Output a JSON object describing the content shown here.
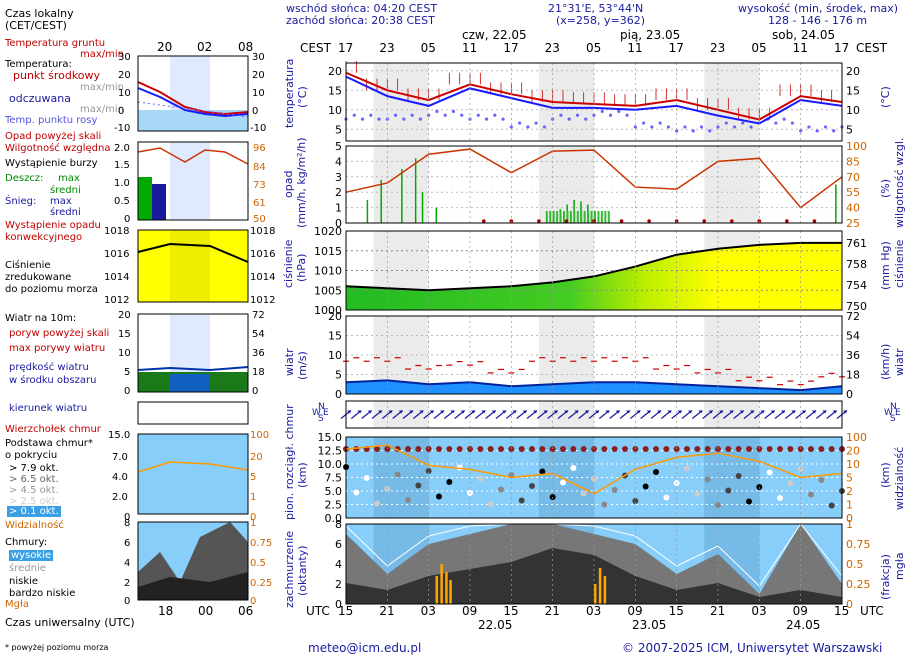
{
  "header": {
    "sunrise": "wschód słońca: 04:20 CEST",
    "sunset": "zachód słońca: 20:38 CEST",
    "coords": "21°31'E, 53°44'N",
    "grid": "(x=258, y=362)",
    "height_label": "wysokość (min, środek, max)",
    "height_values": "128 - 146 - 176 m"
  },
  "legend": {
    "local_time": "Czas lokalny",
    "local_time_zone": "(CET/CEST)",
    "soil_temp": "Temperatura gruntu",
    "soil_temp_sub": "max/min",
    "temperature": "Temperatura:",
    "midpoint": "punkt środkowy",
    "max_min": "max/min",
    "feels_like": "odczuwana",
    "feels_max_min": "max/min",
    "dew_point": "Temp. punktu rosy",
    "precip_above": "Opad powyżej skali",
    "humidity": "Wilgotność względna",
    "storm": "Wystąpienie burzy",
    "rain": "Deszcz:",
    "rain_max": "max",
    "rain_mean": "średni",
    "snow": "Śnieg:",
    "snow_max": "max",
    "snow_mean": "średni",
    "convective": "Wystąpienie opadu",
    "convective2": "konwekcyjnego",
    "pressure": "Ciśnienie",
    "pressure2": "zredukowane",
    "pressure3": "do poziomu morza",
    "wind": "Wiatr na 10m:",
    "gust_above": "poryw powyżej skali",
    "max_gust": "max porywy wiatru",
    "wind_speed": "prędkość wiatru",
    "wind_speed2": "w środku obszaru",
    "wind_dir": "kierunek wiatru",
    "cloud_top": "Wierzchołek chmur",
    "cloud_base": "Podstawa chmur*",
    "cloud_base2": "o pokryciu",
    "okt79": "> 7.9 okt.",
    "okt65": "> 6.5 okt.",
    "okt45": "> 4.5 okt.",
    "okt25": "> 2.5 okt.",
    "okt01": "> 0.1 okt.",
    "visibility": "Widzialność",
    "clouds": "Chmury:",
    "high": "wysokie",
    "mid": "średnie",
    "low": "niskie",
    "very_low": "bardzo niskie",
    "fog": "Mgła",
    "utc_time": "Czas uniwersalny (UTC)",
    "footnote": "* powyżej poziomu morza"
  },
  "axes": {
    "cest": "CEST",
    "utc": "UTC",
    "top_hours": [
      "17",
      "23",
      "05",
      "11",
      "17",
      "23",
      "05",
      "11",
      "17",
      "23",
      "05",
      "11",
      "17"
    ],
    "bottom_hours": [
      "15",
      "21",
      "03",
      "09",
      "15",
      "21",
      "03",
      "09",
      "15",
      "21",
      "03",
      "09",
      "15"
    ],
    "days_top": [
      "czw, 22.05",
      "pią, 23.05",
      "sob, 24.05"
    ],
    "days_bottom": [
      "22.05",
      "23.05",
      "24.05"
    ],
    "legend_top_hours": [
      "20",
      "02",
      "08"
    ],
    "legend_bottom_hours": [
      "18",
      "00",
      "06"
    ],
    "temp_label": "temperatura",
    "temp_unit": "(°C)",
    "precip_label": "opad",
    "precip_unit": "(mm/h, kg/m²/h)",
    "humidity_label": "wilgotność wzgl.",
    "humidity_unit": "(%)",
    "pressure_label": "ciśnienie",
    "pressure_unit": "(hPa)",
    "pressure_unit2": "(mm Hg)",
    "wind_label": "wiatr",
    "wind_unit": "(m/s)",
    "wind_unit2": "(km/h)",
    "cloud_label": "pion. rozciągł. chmur",
    "cloud_unit": "(km)",
    "vis_label": "widzialność",
    "vis_unit": "(km)",
    "cover_label": "zachmurzenie",
    "cover_unit": "(oktanty)",
    "fog_label": "mgła",
    "fog_unit": "(frakcja)",
    "compass": "N W E S"
  },
  "ticks": {
    "temp_left": [
      "20",
      "15",
      "10",
      "5"
    ],
    "temp_right": [
      "20",
      "15",
      "10",
      "5"
    ],
    "legend_temp_left": [
      "30",
      "20",
      "10",
      "0",
      "-10"
    ],
    "legend_temp_right": [
      "30",
      "20",
      "10",
      "0",
      "-10"
    ],
    "precip_left": [
      "5",
      "4",
      "3",
      "2",
      "1",
      "0"
    ],
    "humidity_right": [
      "100",
      "85",
      "70",
      "55",
      "40",
      "25"
    ],
    "legend_precip_left": [
      "2.0",
      "1.5",
      "1.0",
      "0.5",
      "0"
    ],
    "legend_hum_right": [
      "96",
      "84",
      "73",
      "61",
      "50"
    ],
    "pressure_left": [
      "1020",
      "1015",
      "1010",
      "1005",
      "1000"
    ],
    "pressure_right": [
      "761",
      "758",
      "754",
      "750"
    ],
    "legend_press_left": [
      "1018",
      "1016",
      "1014",
      "1012"
    ],
    "legend_press_right": [
      "1018",
      "1016",
      "1014",
      "1012"
    ],
    "wind_left": [
      "20",
      "15",
      "10",
      "5",
      "0"
    ],
    "wind_right": [
      "72",
      "54",
      "36",
      "18",
      "0"
    ],
    "legend_wind_left": [
      "20",
      "15",
      "10",
      "5",
      "0"
    ],
    "legend_wind_right": [
      "72",
      "54",
      "36",
      "18",
      "0"
    ],
    "cloud_left": [
      "15.0",
      "12.5",
      "10.0",
      "7.5",
      "5.0",
      "2.5",
      "0.0"
    ],
    "vis_right": [
      "100",
      "20",
      "10",
      "5",
      "2",
      "1",
      "0"
    ],
    "legend_cloud_left": [
      "15.0",
      "7.0",
      "4.0",
      "2.0",
      "0"
    ],
    "legend_vis_right": [
      "100",
      "20",
      "5",
      "1",
      "0"
    ],
    "cover_left": [
      "8",
      "6",
      "4",
      "2",
      "0"
    ],
    "fog_right": [
      "1",
      "0.75",
      "0.5",
      "0.25",
      "0"
    ],
    "legend_cover_left": [
      "8",
      "6",
      "4",
      "2",
      "0"
    ],
    "legend_fog_right": [
      "1",
      "0.75",
      "0.5",
      "0.25",
      "0"
    ]
  },
  "footer": {
    "email": "meteo@icm.edu.pl",
    "copyright": "© 2007-2025 ICM, Uniwersytet Warszawski"
  },
  "colors": {
    "temp_mid": "#cc0000",
    "feels": "#1a1aff",
    "dew": "#6666ff",
    "precip": "#00aa00",
    "humidity": "#cc3300",
    "pressure_low": "#00aa00",
    "pressure_high": "#ffff00",
    "wind": "#0055cc",
    "gust": "#cc0000",
    "sky": "#87cefa",
    "visibility": "#ff9900"
  },
  "chart_data": [
    {
      "type": "line",
      "name": "temperature",
      "ylim": [
        2,
        22
      ],
      "x": [
        0,
        6,
        12,
        18,
        24,
        30,
        36,
        42,
        48,
        54,
        60,
        66,
        72
      ],
      "series": [
        {
          "name": "punkt środkowy",
          "values": [
            19.5,
            15,
            12.5,
            16.5,
            14,
            12,
            11.5,
            11,
            12.5,
            10,
            7.5,
            13.5,
            12
          ]
        },
        {
          "name": "odczuwana",
          "values": [
            18.5,
            13.5,
            11,
            15.5,
            13,
            10.5,
            10.5,
            10,
            11,
            8.5,
            6.5,
            12.5,
            11
          ]
        },
        {
          "name": "Temp. punktu rosy",
          "values": [
            8,
            8,
            9,
            8,
            6,
            8,
            9,
            6,
            5,
            6,
            7,
            5,
            6
          ]
        }
      ]
    },
    {
      "type": "line",
      "name": "humidity",
      "ylim": [
        25,
        100
      ],
      "x": [
        0,
        6,
        12,
        18,
        24,
        30,
        36,
        42,
        48,
        54,
        60,
        66,
        72
      ],
      "values": [
        55,
        64,
        92,
        97,
        74,
        95,
        96,
        60,
        58,
        85,
        88,
        40,
        70
      ]
    },
    {
      "type": "line",
      "name": "pressure",
      "ylim": [
        1000,
        1020
      ],
      "x": [
        0,
        6,
        12,
        18,
        24,
        30,
        36,
        42,
        48,
        54,
        60,
        66,
        72
      ],
      "values": [
        1006,
        1005.5,
        1005,
        1005.5,
        1006,
        1007,
        1008.5,
        1011,
        1014,
        1015.5,
        1016.5,
        1017,
        1017
      ]
    },
    {
      "type": "line",
      "name": "wind",
      "ylim": [
        0,
        20
      ],
      "x": [
        0,
        6,
        12,
        18,
        24,
        30,
        36,
        42,
        48,
        54,
        60,
        66,
        72
      ],
      "series": [
        {
          "name": "prędkość wiatru",
          "values": [
            3,
            3.5,
            2.5,
            3,
            2,
            2.5,
            3,
            3,
            2.5,
            2,
            1.5,
            1,
            2
          ]
        },
        {
          "name": "max porywy wiatru",
          "values": [
            9,
            9,
            7,
            8,
            6,
            9,
            9,
            9,
            7,
            6,
            4,
            3,
            5
          ]
        }
      ]
    },
    {
      "type": "area",
      "name": "cloud cover",
      "ylim": [
        0,
        8
      ],
      "x": [
        0,
        6,
        12,
        18,
        24,
        30,
        36,
        42,
        48,
        54,
        60,
        66,
        72
      ],
      "series": [
        {
          "name": "wysokie",
          "values": [
            7,
            3,
            6,
            7,
            8,
            8,
            7,
            6,
            3,
            5,
            1,
            8,
            2
          ]
        },
        {
          "name": "niskie",
          "values": [
            3,
            2,
            4,
            5,
            6,
            8,
            7,
            4,
            2,
            3,
            1,
            2,
            1
          ]
        }
      ]
    }
  ]
}
